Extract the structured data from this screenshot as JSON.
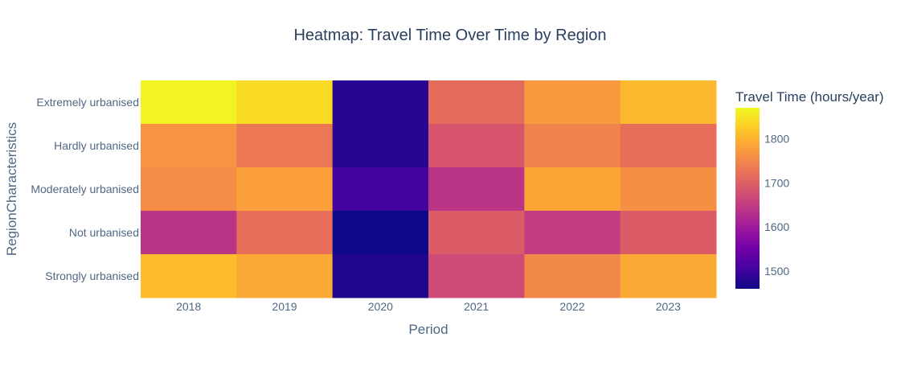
{
  "chart_data": {
    "type": "heatmap",
    "title": "Heatmap: Travel Time Over Time by Region",
    "xlabel": "Period",
    "ylabel": "RegionCharacteristics",
    "x": [
      "2018",
      "2019",
      "2020",
      "2021",
      "2022",
      "2023"
    ],
    "y": [
      "Extremely urbanised",
      "Hardly urbanised",
      "Moderately urbanised",
      "Not urbanised",
      "Strongly urbanised"
    ],
    "z": [
      [
        1865,
        1840,
        1480,
        1715,
        1770,
        1805
      ],
      [
        1765,
        1730,
        1480,
        1685,
        1745,
        1720
      ],
      [
        1755,
        1780,
        1505,
        1640,
        1785,
        1760
      ],
      [
        1640,
        1720,
        1460,
        1695,
        1650,
        1695
      ],
      [
        1810,
        1790,
        1475,
        1670,
        1750,
        1790
      ]
    ],
    "colorbar": {
      "title": "Travel Time (hours/year)",
      "ticks": [
        1500,
        1600,
        1700,
        1800
      ],
      "zmin": 1460,
      "zmax": 1870
    },
    "colorscale": [
      "#0d0887",
      "#46039f",
      "#7201a8",
      "#9c179e",
      "#bd3786",
      "#d8576b",
      "#ed7953",
      "#fb9f3a",
      "#fdca26",
      "#f0f921"
    ],
    "text_color": "#2a3f5f",
    "tick_color": "#506784"
  }
}
